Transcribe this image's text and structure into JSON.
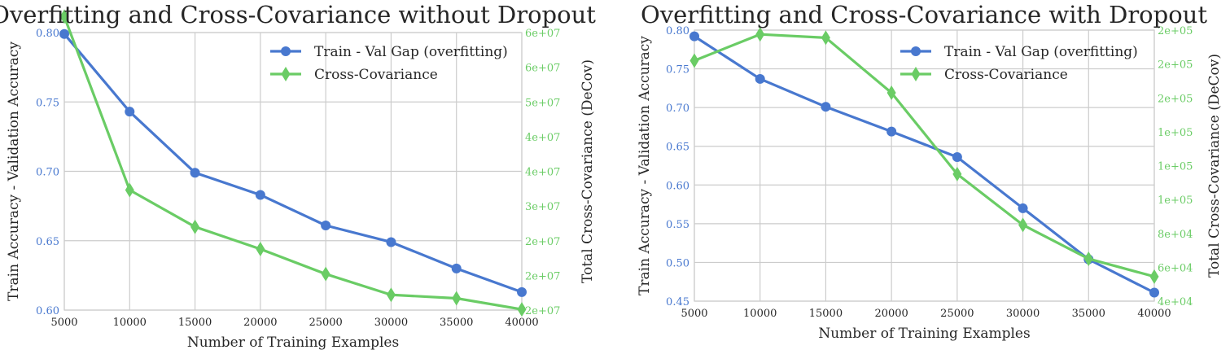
{
  "chart_data": [
    {
      "type": "line",
      "title": "Overfitting and Cross-Covariance without Dropout",
      "xlabel": "Number of Training Examples",
      "ylabel": "Train Accuracy - Validation Accuracy",
      "ylabel_right": "Total Cross-Covariance (DeCov)",
      "x": [
        5000,
        10000,
        15000,
        20000,
        25000,
        30000,
        35000,
        40000
      ],
      "xlim": [
        5000,
        40000
      ],
      "xticks": [
        "5000",
        "10000",
        "15000",
        "20000",
        "25000",
        "30000",
        "35000",
        "40000"
      ],
      "ylim": [
        0.6,
        0.8
      ],
      "yticks": [
        "0.60",
        "0.65",
        "0.70",
        "0.75",
        "0.80"
      ],
      "ylim_right": [
        20000000,
        60000000
      ],
      "yticks_right": [
        "2e+07",
        "2e+07",
        "2e+07",
        "3e+07",
        "4e+07",
        "4e+07",
        "5e+07",
        "6e+07",
        "6e+07"
      ],
      "grid": true,
      "legend_position": "top-right",
      "left_color": "#4878cf",
      "right_color": "#6acc65",
      "series": [
        {
          "name": "Train - Val Gap (overfitting)",
          "axis": "left",
          "marker": "circle",
          "color": "#4878cf",
          "values": [
            0.799,
            0.743,
            0.699,
            0.683,
            0.661,
            0.649,
            0.63,
            0.613
          ]
        },
        {
          "name": "Cross-Covariance",
          "axis": "right",
          "marker": "diamond",
          "color": "#6acc65",
          "values": [
            62300000,
            37300000,
            32000000,
            28800000,
            25200000,
            22200000,
            21700000,
            20100000
          ]
        }
      ]
    },
    {
      "type": "line",
      "title": "Overfitting and Cross-Covariance with Dropout",
      "xlabel": "Number of Training Examples",
      "ylabel": "Train Accuracy - Validation Accuracy",
      "ylabel_right": "Total Cross-Covariance (DeCov)",
      "x": [
        5000,
        10000,
        15000,
        20000,
        25000,
        30000,
        35000,
        40000
      ],
      "xlim": [
        5000,
        40000
      ],
      "xticks": [
        "5000",
        "10000",
        "15000",
        "20000",
        "25000",
        "30000",
        "35000",
        "40000"
      ],
      "ylim": [
        0.45,
        0.8
      ],
      "yticks": [
        "0.45",
        "0.50",
        "0.55",
        "0.60",
        "0.65",
        "0.70",
        "0.75",
        "0.80"
      ],
      "ylim_right": [
        40000,
        200000
      ],
      "yticks_right": [
        "4e+04",
        "6e+04",
        "8e+04",
        "1e+05",
        "1e+05",
        "1e+05",
        "2e+05",
        "2e+05",
        "2e+05"
      ],
      "grid": true,
      "legend_position": "top-right",
      "left_color": "#4878cf",
      "right_color": "#6acc65",
      "series": [
        {
          "name": "Train - Val Gap (overfitting)",
          "axis": "left",
          "marker": "circle",
          "color": "#4878cf",
          "values": [
            0.792,
            0.737,
            0.701,
            0.669,
            0.636,
            0.57,
            0.504,
            0.461
          ]
        },
        {
          "name": "Cross-Covariance",
          "axis": "right",
          "marker": "diamond",
          "color": "#6acc65",
          "values": [
            182000,
            197500,
            195500,
            163000,
            115000,
            85000,
            65000,
            54500
          ]
        }
      ]
    }
  ]
}
